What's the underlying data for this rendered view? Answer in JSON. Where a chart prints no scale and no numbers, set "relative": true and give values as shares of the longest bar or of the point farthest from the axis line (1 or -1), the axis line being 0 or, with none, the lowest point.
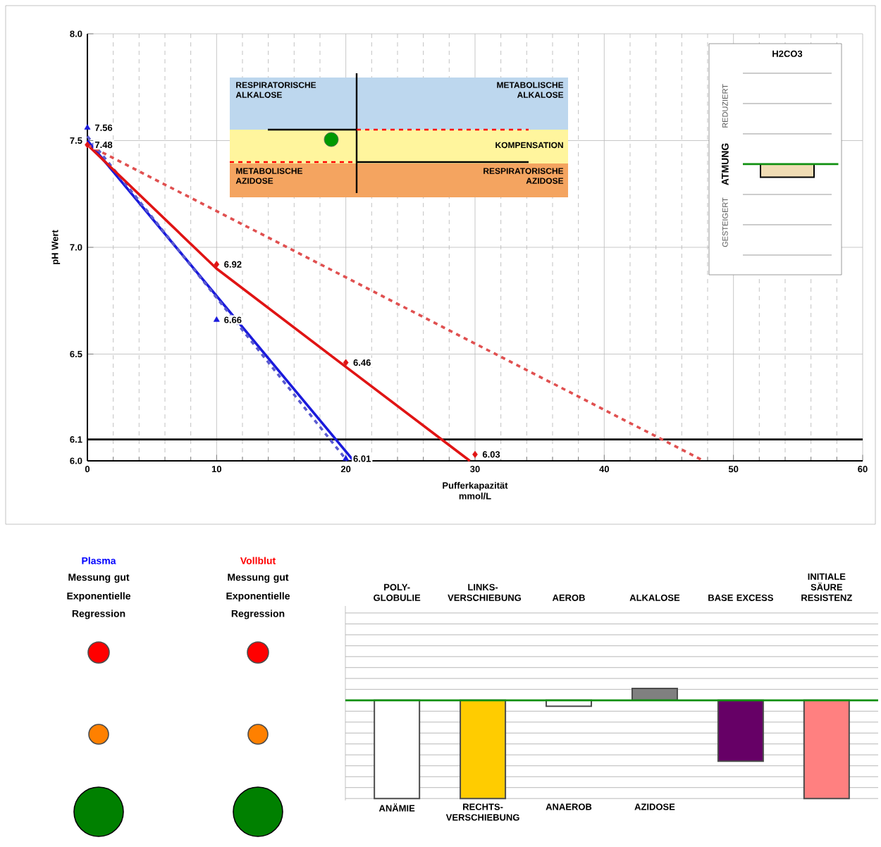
{
  "chart_data": [
    {
      "type": "line",
      "xlabel": "Pufferkapazität mmol/L",
      "ylabel": "pH Wert",
      "xlim": [
        0,
        60
      ],
      "ylim": [
        6.0,
        8.0
      ],
      "xticks": [
        0,
        10,
        20,
        30,
        40,
        50,
        60
      ],
      "yticks": [
        {
          "value": 6.0,
          "label": "6.0"
        },
        6.1,
        6.5,
        {
          "value": 7.0,
          "label": "7.0"
        },
        7.5,
        {
          "value": 8.0,
          "label": "8.0"
        }
      ],
      "grid": true,
      "series": [
        {
          "type": "scatter",
          "color": "#1a1adc",
          "marker": "triangle",
          "data_labels": true,
          "x": [
            0,
            10,
            20
          ],
          "values": [
            7.56,
            6.66,
            6.01
          ]
        },
        {
          "type": "scatter",
          "color": "#e01414",
          "marker": "diamond",
          "data_labels": true,
          "x": [
            0,
            10,
            20,
            30
          ],
          "values": [
            7.48,
            6.92,
            6.46,
            6.03
          ]
        },
        {
          "type": "line",
          "color": "#1a1adc",
          "line_style": "solid",
          "x": [
            0,
            20.6
          ],
          "values": [
            7.5,
            6.0
          ]
        },
        {
          "type": "line",
          "color": "#5a5ad0",
          "line_style": "dashed",
          "x": [
            0,
            20.1
          ],
          "values": [
            7.52,
            6.0
          ]
        },
        {
          "type": "line",
          "color": "#e01414",
          "line_style": "solid",
          "x": [
            0,
            10,
            20,
            29.6
          ],
          "values": [
            7.48,
            6.9,
            6.44,
            6.0
          ]
        },
        {
          "type": "line",
          "color": "#e05050",
          "line_style": "dashed",
          "x": [
            0,
            47.7
          ],
          "values": [
            7.48,
            6.0
          ]
        }
      ],
      "ref_lines": [
        {
          "axis": "y",
          "value": 6.1,
          "color": "#000000"
        }
      ],
      "annotations": [
        "RESPIRATORISCHE ALKALOSE",
        "METABOLISCHE ALKALOSE",
        "KOMPENSATION",
        "METABOLISCHE AZIDOSE",
        "RESPIRATORISCHE AZIDOSE"
      ]
    },
    {
      "type": "bar",
      "relative": true,
      "title": "H2CO3",
      "ylabel": "ATMUNG",
      "categories": [
        null
      ],
      "values": [
        -1
      ],
      "colors": [
        "#f0dcb4"
      ],
      "grid": "y",
      "ref_lines": [
        {
          "axis": "y",
          "value": 0,
          "color": "#109010"
        }
      ],
      "annotations": [
        "REDUZIERT",
        "GESTEIGERT"
      ]
    },
    {
      "type": "other",
      "annotations": [
        "Plasma",
        "Messung gut",
        "Exponentielle Regression",
        "Vollblut",
        "Messung gut",
        "Exponentielle Regression"
      ]
    },
    {
      "type": "bar",
      "relative": true,
      "categories": [
        "POLY-GLOBULIE",
        "LINKS-VERSCHIEBUNG",
        "AEROB",
        "ALKALOSE",
        "BASE EXCESS",
        "INITIALE SÄURE RESISTENZ"
      ],
      "values": [
        -1,
        -1,
        -0.06,
        0.12,
        -0.62,
        -1
      ],
      "colors": [
        "#ffffff",
        "#ffcc00",
        "#ffffff",
        "#808080",
        "#660066",
        "#ff8080"
      ],
      "grid": "y",
      "ref_lines": [
        {
          "axis": "y",
          "value": 0,
          "color": "#109010"
        }
      ],
      "annotations": [
        "ANÄMIE",
        "RECHTS-VERSCHIEBUNG",
        "ANAEROB",
        "AZIDOSE"
      ]
    }
  ]
}
